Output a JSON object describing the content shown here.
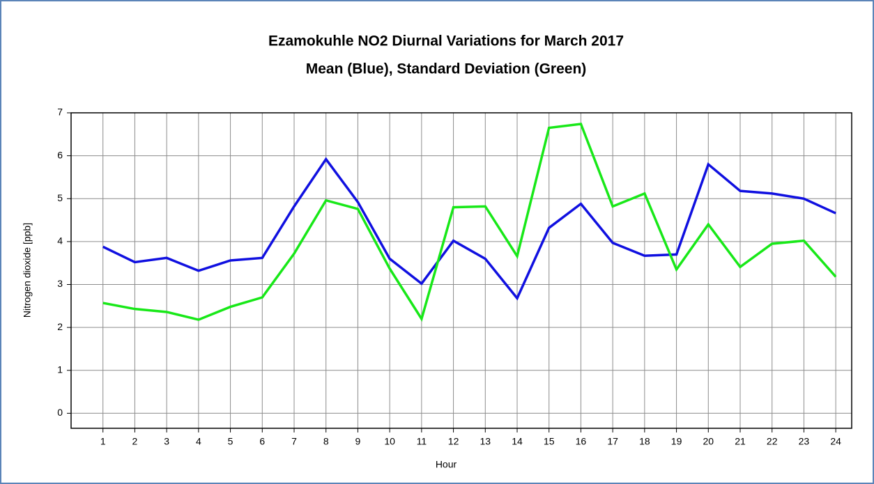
{
  "chart_data": {
    "type": "line",
    "title": "Ezamokuhle NO2 Diurnal Variations for March 2017",
    "subtitle": "Mean (Blue), Standard Deviation (Green)",
    "x_label": "Hour",
    "y_label": "Nitrogen dioxide  [ppb]",
    "x": [
      1,
      2,
      3,
      4,
      5,
      6,
      7,
      8,
      9,
      10,
      11,
      12,
      13,
      14,
      15,
      16,
      17,
      18,
      19,
      20,
      21,
      22,
      23,
      24
    ],
    "series": [
      {
        "name": "Mean",
        "color": "#1010e0",
        "values": [
          3.88,
          3.52,
          3.62,
          3.32,
          3.56,
          3.62,
          4.82,
          5.92,
          4.92,
          3.6,
          3.02,
          4.02,
          3.6,
          2.68,
          4.32,
          4.88,
          3.97,
          3.67,
          3.7,
          5.8,
          5.18,
          5.12,
          5.0,
          4.66
        ]
      },
      {
        "name": "Standard Deviation",
        "color": "#18e818",
        "values": [
          2.57,
          2.43,
          2.36,
          2.18,
          2.48,
          2.7,
          3.72,
          4.96,
          4.76,
          3.37,
          2.2,
          4.8,
          4.82,
          3.66,
          6.65,
          6.74,
          4.82,
          5.12,
          3.35,
          4.4,
          3.41,
          3.95,
          4.02,
          3.18
        ]
      }
    ],
    "xlim": [
      0,
      24.5
    ],
    "xticks": [
      1,
      2,
      3,
      4,
      5,
      6,
      7,
      8,
      9,
      10,
      11,
      12,
      13,
      14,
      15,
      16,
      17,
      18,
      19,
      20,
      21,
      22,
      23,
      24
    ],
    "ylim": [
      -0.35,
      7
    ],
    "yticks": [
      0,
      1,
      2,
      3,
      4,
      5,
      6,
      7
    ],
    "grid": true
  }
}
